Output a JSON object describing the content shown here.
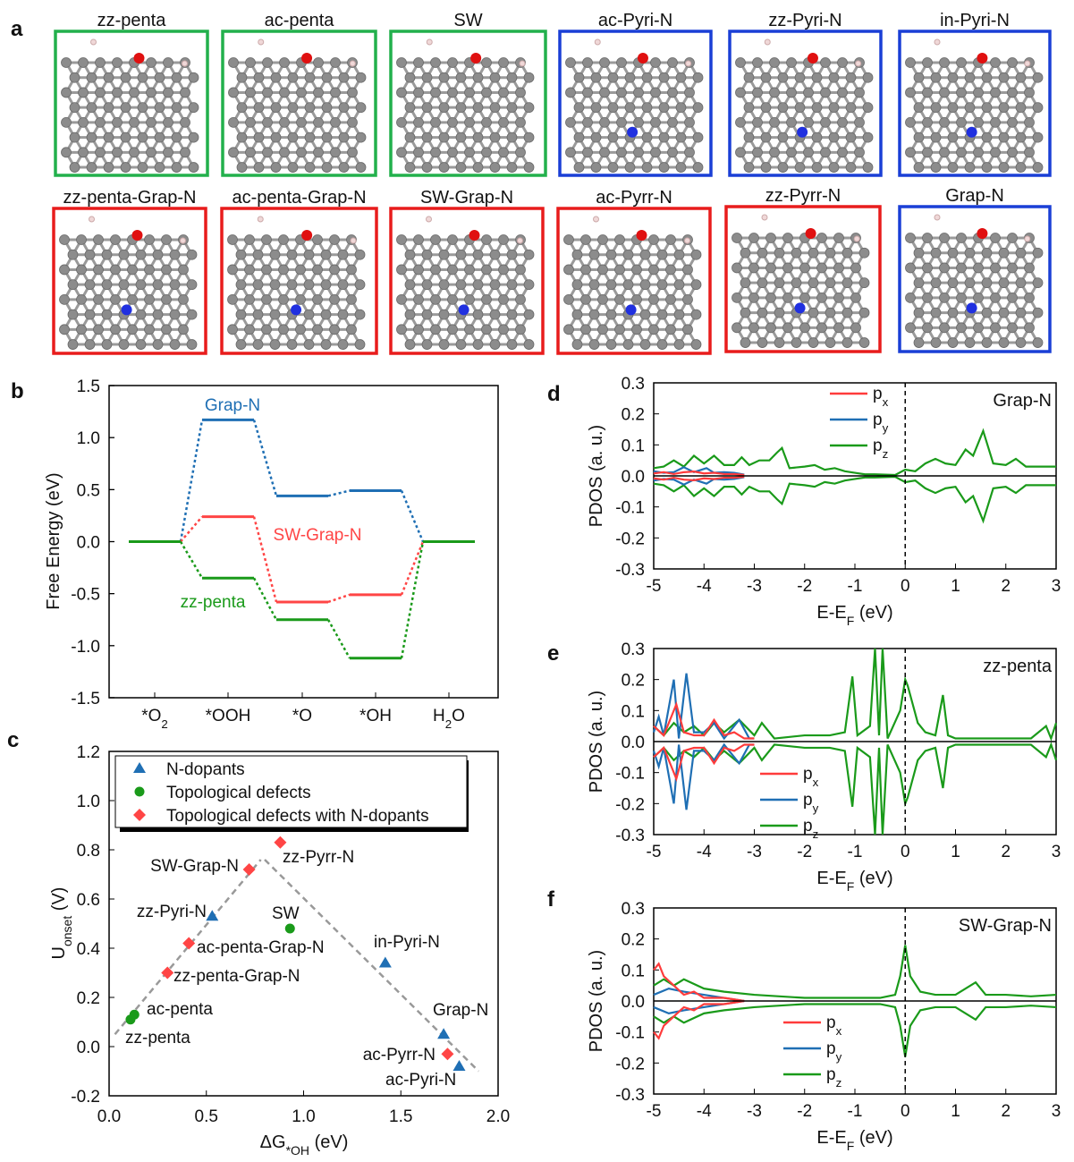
{
  "panel_labels": [
    "a",
    "b",
    "c",
    "d",
    "e",
    "f"
  ],
  "colors": {
    "green_box": "#22b04c",
    "blue_box": "#1a3fd6",
    "red_box": "#e81c1c",
    "carbon": "#8c8c8c",
    "oxygen": "#e01010",
    "nitrogen": "#2030e0",
    "hydrogen": "#f0d8d8"
  },
  "structures": [
    {
      "name": "zz-penta",
      "frame": "green"
    },
    {
      "name": "ac-penta",
      "frame": "green"
    },
    {
      "name": "SW",
      "frame": "green"
    },
    {
      "name": "ac-Pyri-N",
      "frame": "blue"
    },
    {
      "name": "zz-Pyri-N",
      "frame": "blue"
    },
    {
      "name": "in-Pyri-N",
      "frame": "blue"
    },
    {
      "name": "zz-penta-Grap-N",
      "frame": "red"
    },
    {
      "name": "ac-penta-Grap-N",
      "frame": "red"
    },
    {
      "name": "SW-Grap-N",
      "frame": "red"
    },
    {
      "name": "ac-Pyrr-N",
      "frame": "red"
    },
    {
      "name": "zz-Pyrr-N",
      "frame": "red"
    },
    {
      "name": "Grap-N",
      "frame": "blue"
    }
  ],
  "chart_data": [
    {
      "panel": "b",
      "type": "line",
      "style": "free energy level diagram",
      "categories": [
        {
          "pre": "*O",
          "sub": "2",
          "post": ""
        },
        {
          "pre": "*OOH",
          "sub": "",
          "post": ""
        },
        {
          "pre": "*O",
          "sub": "",
          "post": ""
        },
        {
          "pre": "*OH",
          "sub": "",
          "post": ""
        },
        {
          "pre": "H",
          "sub": "2",
          "post": "O"
        }
      ],
      "ylabel": "Free Energy (eV)",
      "ylim": [
        -1.5,
        1.5
      ],
      "yticks": [
        -1.5,
        -1.0,
        -0.5,
        0.0,
        0.5,
        1.0,
        1.5
      ],
      "series": [
        {
          "name": "Grap-N",
          "color": "#1f6fb4",
          "values": [
            0,
            1.17,
            0.44,
            0.49,
            0
          ]
        },
        {
          "name": "SW-Grap-N",
          "color": "#ff4545",
          "values": [
            0,
            0.24,
            -0.58,
            -0.51,
            0
          ]
        },
        {
          "name": "zz-penta",
          "color": "#1a9a1a",
          "values": [
            0,
            -0.35,
            -0.75,
            -1.12,
            0
          ]
        }
      ]
    },
    {
      "panel": "c",
      "type": "scatter",
      "xlabel": {
        "pre": "ΔG",
        "sub": "*OH",
        "post": " (eV)"
      },
      "ylabel": {
        "pre": "U",
        "sub": "onset",
        "post": " (V)"
      },
      "xlim": [
        0,
        2.0
      ],
      "ylim": [
        -0.2,
        1.2
      ],
      "xticks": [
        0.0,
        0.5,
        1.0,
        1.5,
        2.0
      ],
      "yticks": [
        -0.2,
        0.0,
        0.2,
        0.4,
        0.6,
        0.8,
        1.0,
        1.2
      ],
      "legend_position": "top-left",
      "series": [
        {
          "name": "N-dopants",
          "marker": "triangle",
          "color": "#1f6fb4",
          "points": [
            {
              "label": "zz-Pyri-N",
              "x": 0.53,
              "y": 0.53
            },
            {
              "label": "in-Pyri-N",
              "x": 1.42,
              "y": 0.34
            },
            {
              "label": "Grap-N",
              "x": 1.72,
              "y": 0.05
            },
            {
              "label": "ac-Pyri-N",
              "x": 1.8,
              "y": -0.08
            }
          ]
        },
        {
          "name": "Topological defects",
          "marker": "circle",
          "color": "#1a9a1a",
          "points": [
            {
              "label": "zz-penta",
              "x": 0.11,
              "y": 0.11
            },
            {
              "label": "ac-penta",
              "x": 0.13,
              "y": 0.13
            },
            {
              "label": "SW",
              "x": 0.93,
              "y": 0.48
            }
          ]
        },
        {
          "name": "Topological defects with N-dopants",
          "marker": "diamond",
          "color": "#ff4545",
          "points": [
            {
              "label": "SW-Grap-N",
              "x": 0.72,
              "y": 0.72
            },
            {
              "label": "zz-Pyrr-N",
              "x": 0.88,
              "y": 0.83
            },
            {
              "label": "ac-penta-Grap-N",
              "x": 0.41,
              "y": 0.42
            },
            {
              "label": "zz-penta-Grap-N",
              "x": 0.3,
              "y": 0.3
            },
            {
              "label": "ac-Pyrr-N",
              "x": 1.74,
              "y": -0.03
            }
          ]
        }
      ],
      "volcano_lines": [
        [
          [
            0.03,
            0.05
          ],
          [
            0.78,
            0.76
          ]
        ],
        [
          [
            0.8,
            0.76
          ],
          [
            1.9,
            -0.1
          ]
        ]
      ]
    },
    {
      "panel": "d",
      "type": "line",
      "title": "Grap-N",
      "xlabel": {
        "pre": "E-E",
        "sub": "F",
        "post": " (eV)"
      },
      "ylabel": "PDOS (a. u.)",
      "xlim": [
        -5,
        3
      ],
      "ylim": [
        -0.3,
        0.3
      ],
      "xticks": [
        -5,
        -4,
        -3,
        -2,
        -1,
        0,
        1,
        2,
        3
      ],
      "yticks": [
        -0.3,
        -0.2,
        -0.1,
        0.0,
        0.1,
        0.2,
        0.3
      ],
      "fermi_level": 0,
      "spin_mirrored": true,
      "legend_position": "top-center",
      "series": [
        {
          "name": {
            "pre": "p",
            "sub": "x"
          },
          "color": "#ff3b3b",
          "points": [
            [
              -5,
              0.008
            ],
            [
              -4.8,
              0.012
            ],
            [
              -4.6,
              0.006
            ],
            [
              -4.4,
              0.012
            ],
            [
              -4.2,
              0.014
            ],
            [
              -4.0,
              0.008
            ],
            [
              -3.8,
              0.01
            ],
            [
              -3.6,
              0.006
            ],
            [
              -3.4,
              0.006
            ],
            [
              -3.2,
              0.003
            ]
          ]
        },
        {
          "name": {
            "pre": "p",
            "sub": "y"
          },
          "color": "#1f6fb4",
          "points": [
            [
              -5,
              0.015
            ],
            [
              -4.8,
              0.01
            ],
            [
              -4.6,
              0.012
            ],
            [
              -4.4,
              0.028
            ],
            [
              -4.2,
              0.012
            ],
            [
              -3.95,
              0.025
            ],
            [
              -3.8,
              0.01
            ],
            [
              -3.6,
              0.012
            ],
            [
              -3.4,
              0.01
            ],
            [
              -3.2,
              0.004
            ]
          ]
        },
        {
          "name": {
            "pre": "p",
            "sub": "z"
          },
          "color": "#1a9a1a",
          "points": [
            [
              -5,
              0.025
            ],
            [
              -4.8,
              0.03
            ],
            [
              -4.6,
              0.05
            ],
            [
              -4.4,
              0.03
            ],
            [
              -4.2,
              0.065
            ],
            [
              -4.0,
              0.04
            ],
            [
              -3.8,
              0.065
            ],
            [
              -3.6,
              0.035
            ],
            [
              -3.4,
              0.035
            ],
            [
              -3.25,
              0.06
            ],
            [
              -3.1,
              0.035
            ],
            [
              -2.9,
              0.05
            ],
            [
              -2.7,
              0.05
            ],
            [
              -2.55,
              0.075
            ],
            [
              -2.45,
              0.09
            ],
            [
              -2.3,
              0.025
            ],
            [
              -2.0,
              0.03
            ],
            [
              -1.8,
              0.035
            ],
            [
              -1.6,
              0.02
            ],
            [
              -1.4,
              0.025
            ],
            [
              -1.2,
              0.015
            ],
            [
              -1.0,
              0.01
            ],
            [
              -0.8,
              0.005
            ],
            [
              -0.6,
              0.005
            ],
            [
              -0.4,
              0.004
            ],
            [
              -0.2,
              0.003
            ],
            [
              0,
              0.02
            ],
            [
              0.2,
              0.015
            ],
            [
              0.4,
              0.04
            ],
            [
              0.6,
              0.055
            ],
            [
              0.8,
              0.04
            ],
            [
              1.0,
              0.035
            ],
            [
              1.2,
              0.085
            ],
            [
              1.35,
              0.065
            ],
            [
              1.55,
              0.145
            ],
            [
              1.75,
              0.04
            ],
            [
              2.0,
              0.035
            ],
            [
              2.2,
              0.055
            ],
            [
              2.4,
              0.03
            ],
            [
              2.6,
              0.03
            ],
            [
              2.8,
              0.03
            ],
            [
              3.0,
              0.03
            ]
          ]
        }
      ]
    },
    {
      "panel": "e",
      "type": "line",
      "title": "zz-penta",
      "xlabel": {
        "pre": "E-E",
        "sub": "F",
        "post": " (eV)"
      },
      "ylabel": "PDOS (a. u.)",
      "xlim": [
        -5,
        3
      ],
      "ylim": [
        -0.3,
        0.3
      ],
      "xticks": [
        -5,
        -4,
        -3,
        -2,
        -1,
        0,
        1,
        2,
        3
      ],
      "yticks": [
        -0.3,
        -0.2,
        -0.1,
        0.0,
        0.1,
        0.2,
        0.3
      ],
      "fermi_level": 0,
      "spin_mirrored": true,
      "legend_position": "bottom-center",
      "series": [
        {
          "name": {
            "pre": "p",
            "sub": "x"
          },
          "color": "#ff3b3b",
          "points": [
            [
              -5,
              0.05
            ],
            [
              -4.8,
              0.02
            ],
            [
              -4.55,
              0.12
            ],
            [
              -4.4,
              0.03
            ],
            [
              -4.2,
              0.02
            ],
            [
              -4.0,
              0.02
            ],
            [
              -3.8,
              0.07
            ],
            [
              -3.6,
              0.02
            ],
            [
              -3.4,
              0.03
            ],
            [
              -3.2,
              0.01
            ],
            [
              -3.0,
              0.01
            ]
          ]
        },
        {
          "name": {
            "pre": "p",
            "sub": "y"
          },
          "color": "#1f6fb4",
          "points": [
            [
              -5,
              0.03
            ],
            [
              -4.9,
              0.08
            ],
            [
              -4.8,
              0.02
            ],
            [
              -4.6,
              0.2
            ],
            [
              -4.5,
              0.01
            ],
            [
              -4.35,
              0.22
            ],
            [
              -4.2,
              0.03
            ],
            [
              -4.0,
              0.03
            ],
            [
              -3.8,
              0.06
            ],
            [
              -3.6,
              0.01
            ],
            [
              -3.3,
              0.07
            ],
            [
              -3.1,
              0.01
            ],
            [
              -3.0,
              0.01
            ]
          ]
        },
        {
          "name": {
            "pre": "p",
            "sub": "z"
          },
          "color": "#1a9a1a",
          "points": [
            [
              -5,
              0.05
            ],
            [
              -4.8,
              0.02
            ],
            [
              -4.6,
              0.06
            ],
            [
              -4.4,
              0.03
            ],
            [
              -4.2,
              0.05
            ],
            [
              -4.0,
              0.02
            ],
            [
              -3.8,
              0.06
            ],
            [
              -3.6,
              0.03
            ],
            [
              -3.3,
              0.07
            ],
            [
              -3.0,
              0.02
            ],
            [
              -2.85,
              0.06
            ],
            [
              -2.6,
              0.01
            ],
            [
              -2.0,
              0.02
            ],
            [
              -1.5,
              0.02
            ],
            [
              -1.2,
              0.03
            ],
            [
              -1.05,
              0.21
            ],
            [
              -0.95,
              0.02
            ],
            [
              -0.7,
              0.05
            ],
            [
              -0.6,
              0.3
            ],
            [
              -0.52,
              0.02
            ],
            [
              -0.45,
              0.3
            ],
            [
              -0.35,
              0.01
            ],
            [
              -0.1,
              0.1
            ],
            [
              0,
              0.2
            ],
            [
              0.05,
              0.18
            ],
            [
              0.15,
              0.12
            ],
            [
              0.25,
              0.06
            ],
            [
              0.4,
              0.03
            ],
            [
              0.6,
              0.02
            ],
            [
              0.75,
              0.15
            ],
            [
              0.85,
              0.02
            ],
            [
              1.0,
              0.01
            ],
            [
              2.0,
              0.01
            ],
            [
              2.5,
              0.01
            ],
            [
              2.8,
              0.05
            ],
            [
              2.9,
              0.01
            ],
            [
              3.0,
              0.06
            ]
          ]
        }
      ]
    },
    {
      "panel": "f",
      "type": "line",
      "title": "SW-Grap-N",
      "xlabel": {
        "pre": "E-E",
        "sub": "F",
        "post": " (eV)"
      },
      "ylabel": "PDOS (a. u.)",
      "xlim": [
        -5,
        3
      ],
      "ylim": [
        -0.3,
        0.3
      ],
      "xticks": [
        -5,
        -4,
        -3,
        -2,
        -1,
        0,
        1,
        2,
        3
      ],
      "yticks": [
        -0.3,
        -0.2,
        -0.1,
        0.0,
        0.1,
        0.2,
        0.3
      ],
      "fermi_level": 0,
      "spin_mirrored": true,
      "legend_position": "bottom-center",
      "series": [
        {
          "name": {
            "pre": "p",
            "sub": "x"
          },
          "color": "#ff3b3b",
          "points": [
            [
              -5,
              0.1
            ],
            [
              -4.9,
              0.12
            ],
            [
              -4.8,
              0.08
            ],
            [
              -4.6,
              0.05
            ],
            [
              -4.4,
              0.02
            ],
            [
              -4.2,
              0.03
            ],
            [
              -4.0,
              0.01
            ],
            [
              -3.6,
              0.01
            ],
            [
              -3.2,
              0.0
            ]
          ]
        },
        {
          "name": {
            "pre": "p",
            "sub": "y"
          },
          "color": "#1f6fb4",
          "points": [
            [
              -5,
              0.02
            ],
            [
              -4.7,
              0.04
            ],
            [
              -4.4,
              0.03
            ],
            [
              -4.0,
              0.02
            ],
            [
              -3.6,
              0.01
            ],
            [
              -3.2,
              0.0
            ]
          ]
        },
        {
          "name": {
            "pre": "p",
            "sub": "z"
          },
          "color": "#1a9a1a",
          "points": [
            [
              -5,
              0.05
            ],
            [
              -4.8,
              0.07
            ],
            [
              -4.6,
              0.05
            ],
            [
              -4.4,
              0.07
            ],
            [
              -4.0,
              0.04
            ],
            [
              -3.6,
              0.03
            ],
            [
              -3.0,
              0.02
            ],
            [
              -2.5,
              0.015
            ],
            [
              -2.0,
              0.01
            ],
            [
              -1.0,
              0.01
            ],
            [
              -0.5,
              0.01
            ],
            [
              -0.2,
              0.02
            ],
            [
              -0.1,
              0.08
            ],
            [
              0,
              0.18
            ],
            [
              0.1,
              0.08
            ],
            [
              0.3,
              0.03
            ],
            [
              0.6,
              0.02
            ],
            [
              1.0,
              0.02
            ],
            [
              1.4,
              0.06
            ],
            [
              1.6,
              0.02
            ],
            [
              2.0,
              0.02
            ],
            [
              2.5,
              0.015
            ],
            [
              3.0,
              0.02
            ]
          ]
        }
      ]
    }
  ]
}
